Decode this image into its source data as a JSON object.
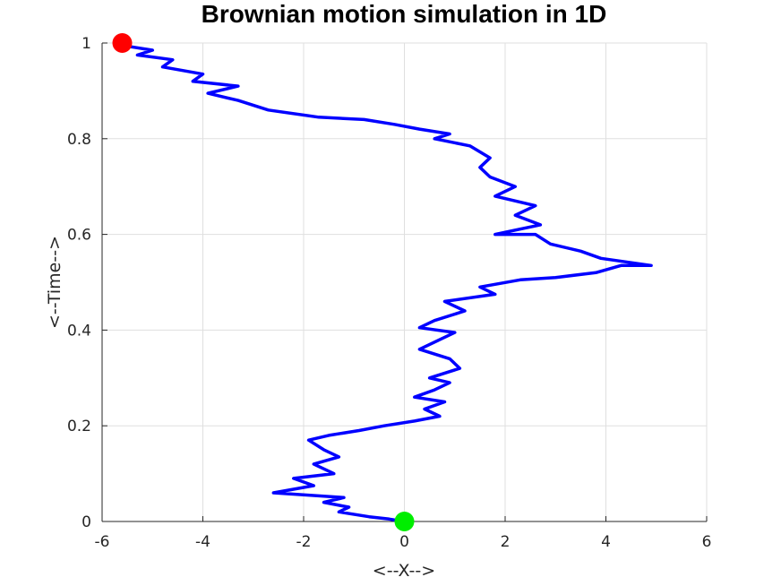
{
  "chart_data": {
    "type": "line",
    "title": "Brownian motion simulation in 1D",
    "xlabel": "<--X-->",
    "ylabel": "<--Time-->",
    "xlim": [
      -6,
      6
    ],
    "ylim": [
      0,
      1
    ],
    "xticks": [
      -6,
      -4,
      -2,
      0,
      2,
      4,
      6
    ],
    "yticks": [
      0,
      0.2,
      0.4,
      0.6,
      0.8,
      1
    ],
    "xtick_labels": [
      "-6",
      "-4",
      "-2",
      "0",
      "2",
      "4",
      "6"
    ],
    "ytick_labels": [
      "0",
      "0.2",
      "0.4",
      "0.6",
      "0.8",
      "1"
    ],
    "grid": true,
    "colors": {
      "path": "#0000ff",
      "start": "#00ee00",
      "end": "#ff0000",
      "grid": "#dfdfdf",
      "axis": "#262626"
    },
    "series": [
      {
        "x": [
          0,
          -0.3,
          -0.7,
          -1.3,
          -1.1,
          -1.6,
          -1.2,
          -2.6,
          -1.8,
          -2.2,
          -1.4,
          -1.8,
          -1.3,
          -1.6,
          -1.9,
          -1.5,
          -0.9,
          -0.4,
          0.2,
          0.7,
          0.4,
          0.8,
          0.2,
          0.6,
          0.9,
          0.5,
          1.1,
          0.9,
          0.3,
          0.7,
          1.0,
          0.3,
          0.6,
          1.2,
          0.8,
          1.8,
          1.5,
          2.3,
          3.0,
          3.8,
          4.3,
          4.9,
          3.9,
          3.5,
          2.9,
          2.6,
          1.8,
          2.7,
          2.2,
          2.6,
          1.8,
          2.2,
          1.7,
          1.5,
          1.7,
          1.3,
          0.6,
          0.9,
          0.3,
          -0.2,
          -0.8,
          -1.7,
          -2.7,
          -3.3,
          -3.9,
          -3.3,
          -4.2,
          -4.0,
          -4.8,
          -4.6,
          -5.3,
          -5.0,
          -5.6,
          -5.6
        ],
        "t": [
          0,
          0.005,
          0.01,
          0.02,
          0.03,
          0.04,
          0.05,
          0.06,
          0.075,
          0.09,
          0.1,
          0.12,
          0.135,
          0.15,
          0.17,
          0.18,
          0.19,
          0.2,
          0.21,
          0.22,
          0.235,
          0.25,
          0.26,
          0.275,
          0.29,
          0.3,
          0.32,
          0.34,
          0.36,
          0.38,
          0.395,
          0.405,
          0.42,
          0.44,
          0.46,
          0.475,
          0.49,
          0.505,
          0.51,
          0.52,
          0.535,
          0.535,
          0.55,
          0.565,
          0.58,
          0.6,
          0.6,
          0.62,
          0.64,
          0.66,
          0.68,
          0.7,
          0.72,
          0.74,
          0.76,
          0.785,
          0.8,
          0.81,
          0.82,
          0.83,
          0.84,
          0.845,
          0.86,
          0.88,
          0.895,
          0.91,
          0.92,
          0.935,
          0.95,
          0.965,
          0.975,
          0.985,
          0.995,
          1.0
        ]
      }
    ],
    "markers": [
      {
        "x": 0,
        "t": 0
      },
      {
        "x": -5.6,
        "t": 1.0
      }
    ]
  }
}
